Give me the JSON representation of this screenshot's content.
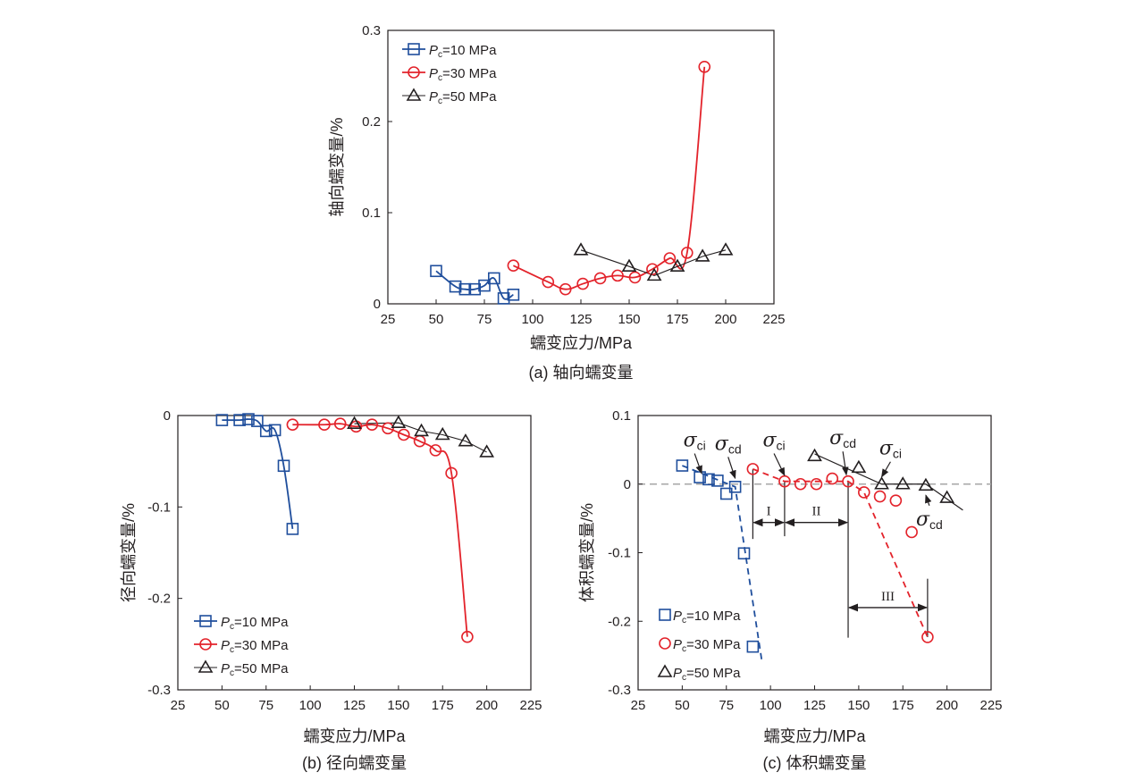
{
  "colors": {
    "pc10": "#1f4e9c",
    "pc30": "#e3232b",
    "pc50": "#231f20",
    "axis": "#231f20",
    "zero_line": "#a6a6a6"
  },
  "chart_data": [
    {
      "id": "a",
      "type": "line",
      "caption": "(a) 轴向蠕变量",
      "xlabel": "蠕变应力/MPa",
      "ylabel": "轴向蠕变量/%",
      "xlim": [
        25,
        225
      ],
      "ylim": [
        0,
        0.3
      ],
      "xticks": [
        25,
        50,
        75,
        100,
        125,
        150,
        175,
        200,
        225
      ],
      "yticks": [
        0,
        0.1,
        0.2,
        0.3
      ],
      "ytick_labels": [
        "0",
        "0.1",
        "0.2",
        "0.3"
      ],
      "grid": false,
      "legend_position": "top-left",
      "series": [
        {
          "name": "Pc=10 MPa",
          "label_main": "P",
          "label_sub": "c",
          "label_rest": "=10 MPa",
          "marker": "square",
          "color_key": "pc10",
          "smooth": true,
          "x": [
            50,
            60,
            65,
            70,
            75,
            80,
            85,
            90
          ],
          "y": [
            0.036,
            0.019,
            0.016,
            0.016,
            0.02,
            0.028,
            0.006,
            0.01
          ]
        },
        {
          "name": "Pc=30 MPa",
          "label_main": "P",
          "label_sub": "c",
          "label_rest": "=30 MPa",
          "marker": "circle",
          "color_key": "pc30",
          "smooth": true,
          "x": [
            90,
            108,
            117,
            126,
            135,
            144,
            153,
            162,
            171,
            180,
            189
          ],
          "y": [
            0.042,
            0.024,
            0.016,
            0.022,
            0.028,
            0.031,
            0.029,
            0.038,
            0.05,
            0.056,
            0.26
          ]
        },
        {
          "name": "Pc=50 MPa",
          "label_main": "P",
          "label_sub": "c",
          "label_rest": "=50 MPa",
          "marker": "triangle",
          "color_key": "pc50",
          "smooth": false,
          "x": [
            125,
            150,
            163,
            175,
            188,
            200
          ],
          "y": [
            0.059,
            0.041,
            0.031,
            0.041,
            0.052,
            0.059
          ]
        }
      ]
    },
    {
      "id": "b",
      "type": "line",
      "caption": "(b) 径向蠕变量",
      "xlabel": "蠕变应力/MPa",
      "ylabel": "径向蠕变量/%",
      "xlim": [
        25,
        225
      ],
      "ylim": [
        -0.3,
        0
      ],
      "xticks": [
        25,
        50,
        75,
        100,
        125,
        150,
        175,
        200,
        225
      ],
      "yticks": [
        -0.3,
        -0.2,
        -0.1,
        0
      ],
      "ytick_labels": [
        "-0.3",
        "-0.2",
        "-0.1",
        "0"
      ],
      "grid": false,
      "legend_position": "bottom-left",
      "series": [
        {
          "name": "Pc=10 MPa",
          "label_main": "P",
          "label_sub": "c",
          "label_rest": "=10 MPa",
          "marker": "square",
          "color_key": "pc10",
          "smooth": true,
          "x": [
            50,
            60,
            65,
            70,
            75,
            80,
            85,
            90
          ],
          "y": [
            -0.005,
            -0.005,
            -0.004,
            -0.006,
            -0.017,
            -0.016,
            -0.055,
            -0.124
          ]
        },
        {
          "name": "Pc=30 MPa",
          "label_main": "P",
          "label_sub": "c",
          "label_rest": "=30 MPa",
          "marker": "circle",
          "color_key": "pc30",
          "smooth": true,
          "x": [
            90,
            108,
            117,
            126,
            135,
            144,
            153,
            162,
            171,
            180,
            189
          ],
          "y": [
            -0.01,
            -0.01,
            -0.009,
            -0.012,
            -0.01,
            -0.014,
            -0.021,
            -0.028,
            -0.038,
            -0.063,
            -0.242
          ]
        },
        {
          "name": "Pc=50 MPa",
          "label_main": "P",
          "label_sub": "c",
          "label_rest": "=50 MPa",
          "marker": "triangle",
          "color_key": "pc50",
          "smooth": false,
          "x": [
            125,
            150,
            163,
            175,
            188,
            200
          ],
          "y": [
            -0.009,
            -0.008,
            -0.017,
            -0.021,
            -0.028,
            -0.04
          ]
        }
      ]
    },
    {
      "id": "c",
      "type": "scatter",
      "caption": "(c) 体积蠕变量",
      "xlabel": "蠕变应力/MPa",
      "ylabel": "体积蠕变量/%",
      "xlim": [
        25,
        225
      ],
      "ylim": [
        -0.3,
        0.1
      ],
      "xticks": [
        25,
        50,
        75,
        100,
        125,
        150,
        175,
        200,
        225
      ],
      "yticks": [
        -0.3,
        -0.2,
        -0.1,
        0,
        0.1
      ],
      "ytick_labels": [
        "-0.3",
        "-0.2",
        "-0.1",
        "0",
        "0.1"
      ],
      "grid": false,
      "zero_line": true,
      "legend_position": "bottom-left",
      "series": [
        {
          "name": "Pc=10 MPa",
          "label_main": "P",
          "label_sub": "c",
          "label_rest": "=10 MPa",
          "marker": "square",
          "color_key": "pc10",
          "x": [
            50,
            60,
            65,
            70,
            75,
            80,
            85,
            90
          ],
          "y": [
            0.027,
            0.01,
            0.007,
            0.005,
            -0.014,
            -0.004,
            -0.101,
            -0.237
          ]
        },
        {
          "name": "Pc=30 MPa",
          "label_main": "P",
          "label_sub": "c",
          "label_rest": "=30 MPa",
          "marker": "circle",
          "color_key": "pc30",
          "x": [
            90,
            108,
            117,
            126,
            135,
            144,
            153,
            162,
            171,
            180,
            189
          ],
          "y": [
            0.022,
            0.004,
            0.0,
            0.0,
            0.008,
            0.004,
            -0.012,
            -0.018,
            -0.024,
            -0.07,
            -0.223
          ]
        },
        {
          "name": "Pc=50 MPa",
          "label_main": "P",
          "label_sub": "c",
          "label_rest": "=50 MPa",
          "marker": "triangle",
          "color_key": "pc50",
          "x": [
            125,
            150,
            163,
            175,
            188,
            200
          ],
          "y": [
            0.041,
            0.024,
            0.0,
            0.0,
            -0.002,
            -0.02
          ]
        }
      ],
      "fit_lines": [
        {
          "color_key": "pc10",
          "dashed": true,
          "x": [
            50,
            80,
            95
          ],
          "y": [
            0.027,
            -0.004,
            -0.256
          ]
        },
        {
          "color_key": "pc30",
          "dashed": true,
          "x": [
            90,
            108,
            144,
            153,
            189
          ],
          "y": [
            0.022,
            0.004,
            0.004,
            -0.012,
            -0.223
          ]
        },
        {
          "color_key": "pc50",
          "dashed": false,
          "x": [
            125,
            163,
            188,
            209
          ],
          "y": [
            0.044,
            0.0,
            0.0,
            -0.038
          ]
        }
      ],
      "annotations": [
        {
          "text": "σ",
          "sub": "ci",
          "at_x": 61,
          "at_y": 0.009,
          "label_x": 57,
          "label_y": 0.055
        },
        {
          "text": "σ",
          "sub": "cd",
          "at_x": 80,
          "at_y": 0.002,
          "label_x": 76,
          "label_y": 0.05
        },
        {
          "text": "σ",
          "sub": "ci",
          "at_x": 108,
          "at_y": 0.006,
          "label_x": 102,
          "label_y": 0.055
        },
        {
          "text": "σ",
          "sub": "cd",
          "at_x": 143,
          "at_y": 0.007,
          "label_x": 141,
          "label_y": 0.058
        },
        {
          "text": "σ",
          "sub": "ci",
          "at_x": 163,
          "at_y": 0.004,
          "label_x": 168,
          "label_y": 0.043
        },
        {
          "text": "σ",
          "sub": "cd",
          "at_x": 188,
          "at_y": -0.007,
          "label_x": 190,
          "label_y": -0.06
        }
      ],
      "regions": [
        {
          "label": "I",
          "x_start": 90,
          "x_end": 108,
          "y": -0.056
        },
        {
          "label": "II",
          "x_start": 108,
          "x_end": 144,
          "y": -0.056
        },
        {
          "label": "III",
          "x_start": 144,
          "x_end": 189,
          "y": -0.18
        }
      ],
      "region_bounds": [
        {
          "x": 90,
          "y_top": 0.022,
          "y_bottom": -0.08
        },
        {
          "x": 108,
          "y_top": 0.004,
          "y_bottom": -0.076
        },
        {
          "x": 144,
          "y_top": 0.004,
          "y_bottom": -0.224
        },
        {
          "x": 189,
          "y_top": -0.138,
          "y_bottom": -0.223
        }
      ]
    }
  ]
}
